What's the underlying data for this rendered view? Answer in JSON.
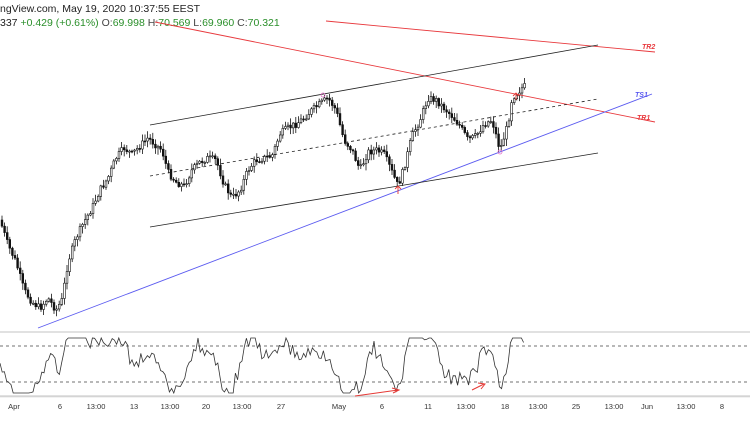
{
  "header": {
    "title": "ngView.com, May 19, 2020 10:37:55 EEST",
    "price_partial": "337",
    "change": "+0.429 (+0.61%)",
    "open_label": "O:",
    "open": "69.998",
    "high_label": "H:",
    "high": "70.569",
    "low_label": "L:",
    "low": "69.960",
    "close_label": "C:",
    "close": "70.321"
  },
  "colors": {
    "candle": "#111111",
    "resistance": "#e8393d",
    "support": "#5b5bf0",
    "channel": "#222222",
    "rsi_line": "#333333",
    "arrow": "#e53935"
  },
  "chart_data": [
    {
      "type": "candlestick",
      "title": "",
      "trendlines": [
        {
          "label": "TR2",
          "color": "#e8393d"
        },
        {
          "label": "TS1",
          "color": "#5b5bf0"
        },
        {
          "label": "TR1",
          "color": "#e8393d"
        },
        {
          "label": "",
          "color": "#222222",
          "style": "channel-upper"
        },
        {
          "label": "",
          "color": "#222222",
          "style": "channel-mid-dashed"
        },
        {
          "label": "",
          "color": "#222222",
          "style": "channel-lower"
        }
      ],
      "x_tick_labels": [
        "Apr",
        "6",
        "13:00",
        "13",
        "13:00",
        "20",
        "13:00",
        "27",
        "May",
        "6",
        "11",
        "13:00",
        "18",
        "13:00",
        "25",
        "13:00",
        "Jun",
        "13:00",
        "8"
      ],
      "grid": false
    },
    {
      "type": "line",
      "title": "",
      "indicator_levels": [
        70,
        30
      ],
      "arrows": 2,
      "grid": false
    }
  ]
}
